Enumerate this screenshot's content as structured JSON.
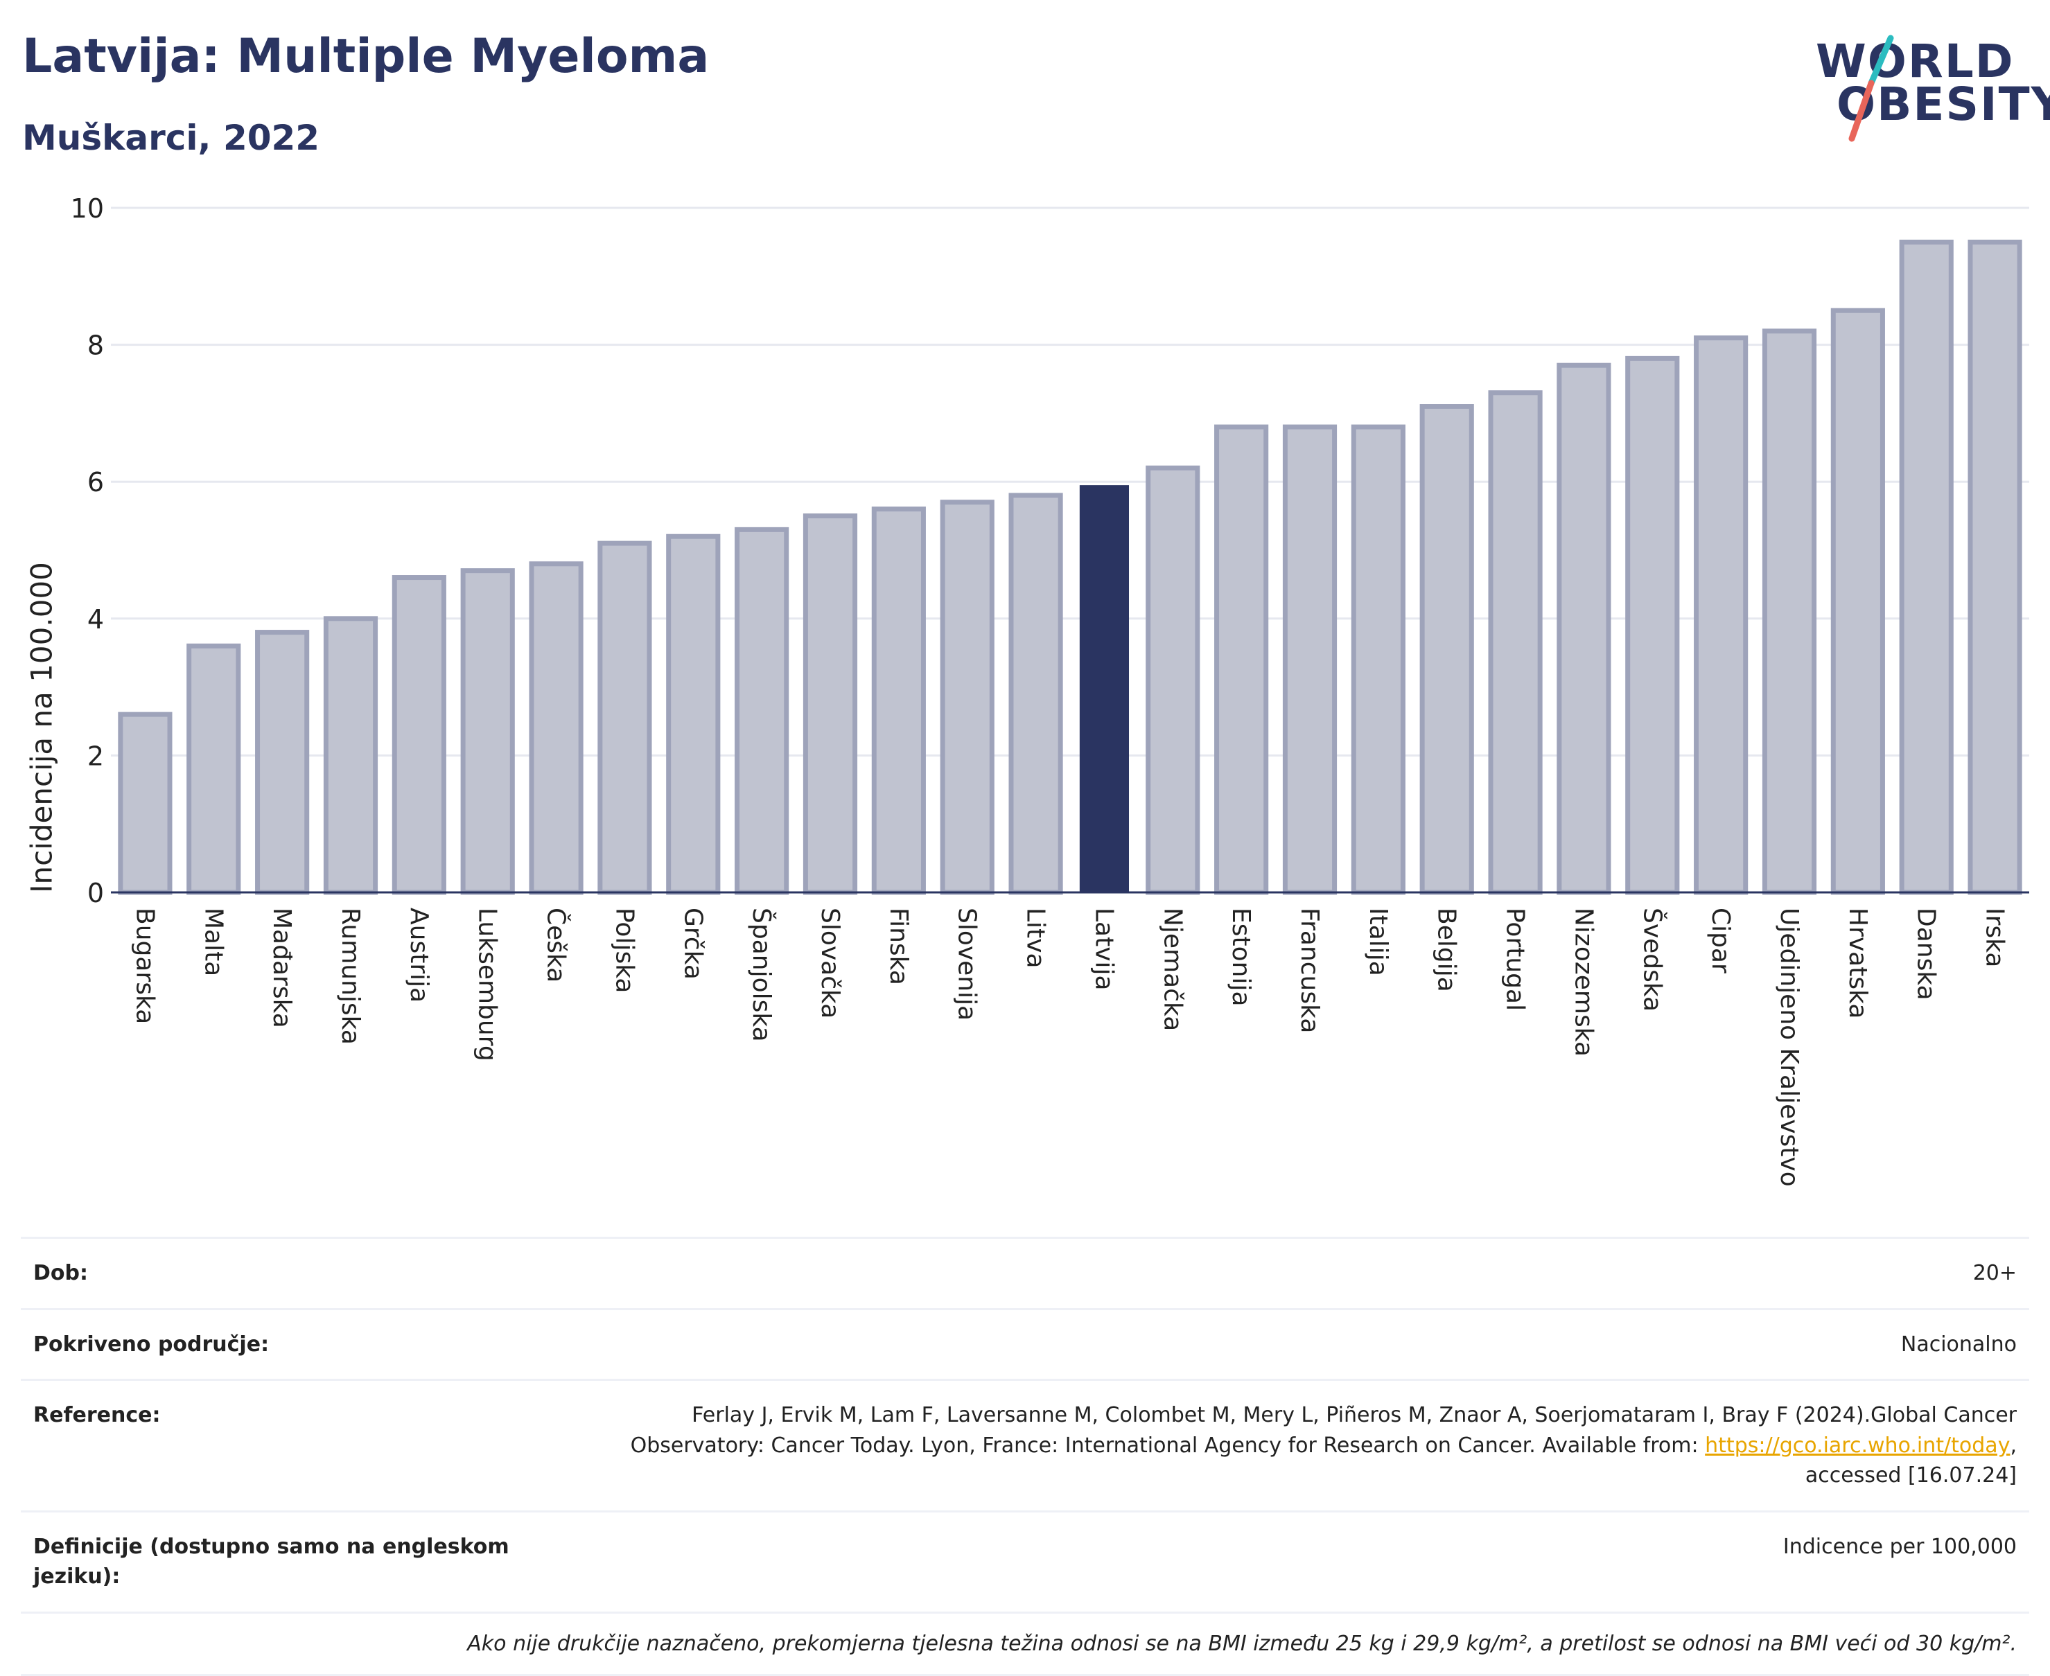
{
  "header": {
    "title": "Latvija: Multiple Myeloma",
    "subtitle": "Muškarci, 2022",
    "logo_line1": "WORLD",
    "logo_line2": "OBESITY"
  },
  "colors": {
    "highlight": "#2a3461",
    "bar": "#c0c3d0",
    "bar_stroke": "#9ea3ba",
    "logo_teal": "#2bbcc0",
    "logo_red": "#e8655a"
  },
  "chart_data": {
    "type": "bar",
    "ylabel": "Incidencija na 100.000",
    "ylim": [
      0,
      10
    ],
    "yticks": [
      0,
      2,
      4,
      6,
      8,
      10
    ],
    "grid": true,
    "highlight": "Latvija",
    "categories": [
      "Bugarska",
      "Malta",
      "Mađarska",
      "Rumunjska",
      "Austrija",
      "Luksemburg",
      "Češka",
      "Poljska",
      "Grčka",
      "Španjolska",
      "Slovačka",
      "Finska",
      "Slovenija",
      "Litva",
      "Latvija",
      "Njemačka",
      "Estonija",
      "Francuska",
      "Italija",
      "Belgija",
      "Portugal",
      "Nizozemska",
      "Švedska",
      "Cipar",
      "Ujedinjeno Kraljevstvo",
      "Hrvatska",
      "Danska",
      "Irska"
    ],
    "values": [
      2.6,
      3.6,
      3.8,
      4.0,
      4.6,
      4.7,
      4.8,
      5.1,
      5.2,
      5.3,
      5.5,
      5.6,
      5.7,
      5.8,
      5.95,
      6.2,
      6.8,
      6.8,
      6.8,
      7.1,
      7.3,
      7.7,
      7.8,
      8.1,
      8.2,
      8.5,
      9.5,
      9.5
    ]
  },
  "info": {
    "rows": [
      {
        "k": "Dob:",
        "v": "20+"
      },
      {
        "k": "Pokriveno područje:",
        "v": "Nacionalno"
      },
      {
        "k": "Reference:",
        "v": "Ferlay J, Ervik M, Lam F, Laversanne M, Colombet M, Mery L, Piñeros M, Znaor A, Soerjomataram I, Bray F (2024).Global Cancer Observatory: Cancer Today. Lyon, France: International Agency for Research on Cancer. Available from: ",
        "link": "https://gco.iarc.who.int/today",
        "after": ", accessed [16.07.24]"
      },
      {
        "k": "Definicije (dostupno samo na engleskom jeziku):",
        "v": "Indicence per 100,000"
      }
    ],
    "note": "Ako nije drukčije naznačeno, prekomjerna tjelesna težina odnosi se na BMI između 25 kg i 29,9 kg/m², a pretilost se odnosi na BMI veći od 30 kg/m²."
  }
}
